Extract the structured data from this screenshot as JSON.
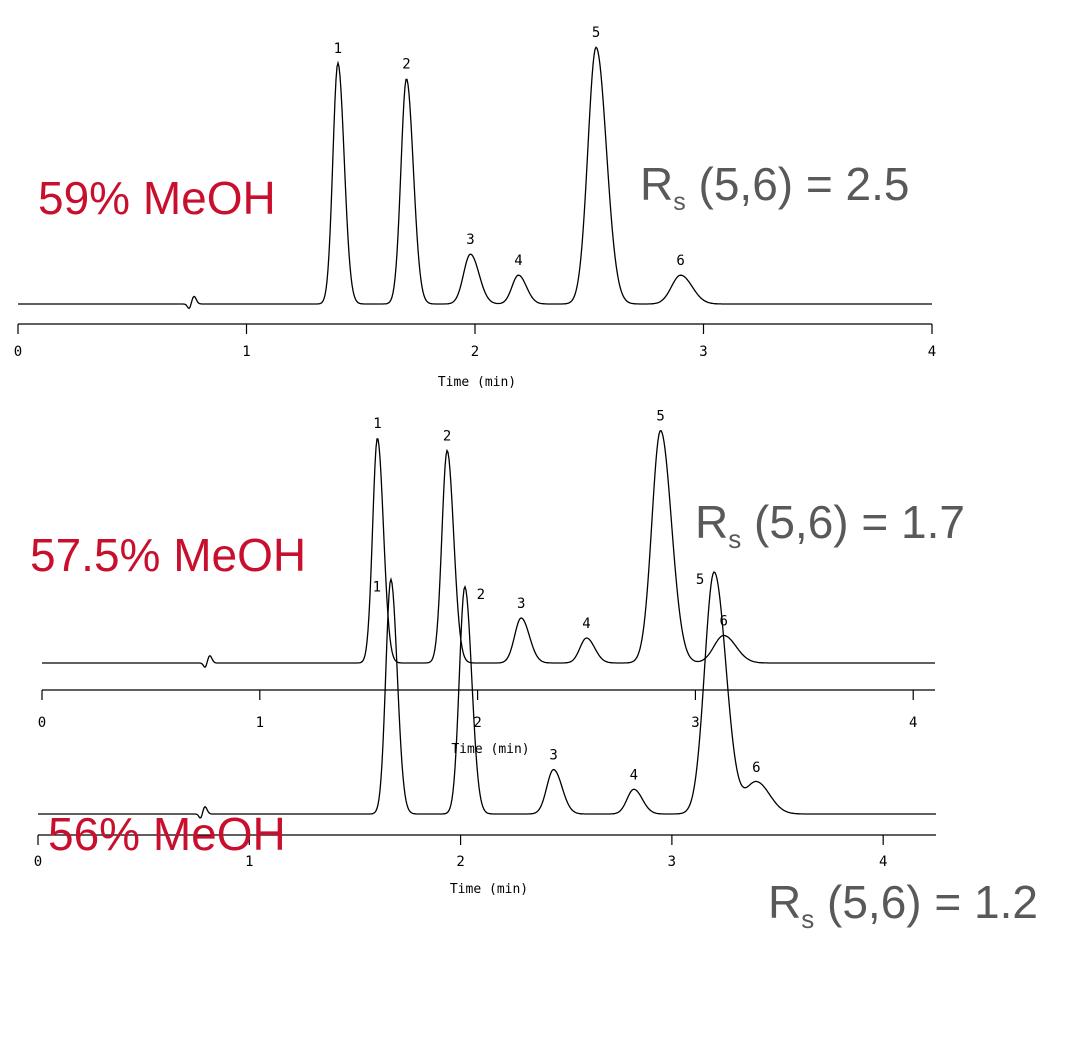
{
  "colors": {
    "condition_text": "#c8102e",
    "rs_text": "#58595b",
    "trace": "#000000"
  },
  "chart_data": [
    {
      "type": "line",
      "condition_label": "59% MeOH",
      "rs": {
        "prefix": "R",
        "subscript": "s",
        "rest": "(5,6) = 2.5"
      },
      "xlabel": "Time (min)",
      "ylabel": "",
      "xlim": [
        0,
        4
      ],
      "xticks": [
        0,
        1,
        2,
        3,
        4
      ],
      "tick_labels": [
        "0",
        "1",
        "2",
        "3",
        "4"
      ],
      "grid": false,
      "disturbance_x": 0.75,
      "peaks": [
        {
          "label": "1",
          "x": 1.4,
          "height": 0.92,
          "width": 0.022
        },
        {
          "label": "2",
          "x": 1.7,
          "height": 0.86,
          "width": 0.024
        },
        {
          "label": "3",
          "x": 1.98,
          "height": 0.19,
          "width": 0.03
        },
        {
          "label": "4",
          "x": 2.19,
          "height": 0.11,
          "width": 0.028
        },
        {
          "label": "5",
          "x": 2.53,
          "height": 0.98,
          "width": 0.036
        },
        {
          "label": "6",
          "x": 2.9,
          "height": 0.11,
          "width": 0.04
        }
      ]
    },
    {
      "type": "line",
      "condition_label": "57.5% MeOH",
      "rs": {
        "prefix": "R",
        "subscript": "s",
        "rest": "(5,6) = 1.7"
      },
      "xlabel": "Time (min)",
      "ylabel": "",
      "xlim": [
        0,
        4.1
      ],
      "xticks": [
        0,
        1,
        2,
        3,
        4
      ],
      "tick_labels": [
        "0",
        "1",
        "2",
        "3",
        "4"
      ],
      "grid": false,
      "disturbance_x": 0.75,
      "peaks": [
        {
          "label": "1",
          "x": 1.54,
          "height": 0.9,
          "width": 0.022
        },
        {
          "label": "2",
          "x": 1.86,
          "height": 0.85,
          "width": 0.024
        },
        {
          "label": "3",
          "x": 2.2,
          "height": 0.18,
          "width": 0.03
        },
        {
          "label": "4",
          "x": 2.5,
          "height": 0.1,
          "width": 0.03
        },
        {
          "label": "5",
          "x": 2.84,
          "height": 0.93,
          "width": 0.04
        },
        {
          "label": "6",
          "x": 3.13,
          "height": 0.11,
          "width": 0.045
        }
      ]
    },
    {
      "type": "line",
      "condition_label": "56% MeOH",
      "rs": {
        "prefix": "R",
        "subscript": "s",
        "rest": "(5,6) = 1.2"
      },
      "xlabel": "Time (min)",
      "ylabel": "",
      "xlim": [
        0,
        4.25
      ],
      "xticks": [
        0,
        1,
        2,
        3,
        4
      ],
      "tick_labels": [
        "0",
        "1",
        "2",
        "3",
        "4"
      ],
      "grid": false,
      "disturbance_x": 0.77,
      "peaks": [
        {
          "label": "1",
          "x": 1.67,
          "height": 0.95,
          "width": 0.024
        },
        {
          "label": "2",
          "x": 2.02,
          "height": 0.92,
          "width": 0.026
        },
        {
          "label": "3",
          "x": 2.44,
          "height": 0.18,
          "width": 0.032
        },
        {
          "label": "4",
          "x": 2.82,
          "height": 0.1,
          "width": 0.032
        },
        {
          "label": "5",
          "x": 3.2,
          "height": 0.98,
          "width": 0.045
        },
        {
          "label": "6",
          "x": 3.4,
          "height": 0.13,
          "width": 0.05
        }
      ]
    }
  ]
}
